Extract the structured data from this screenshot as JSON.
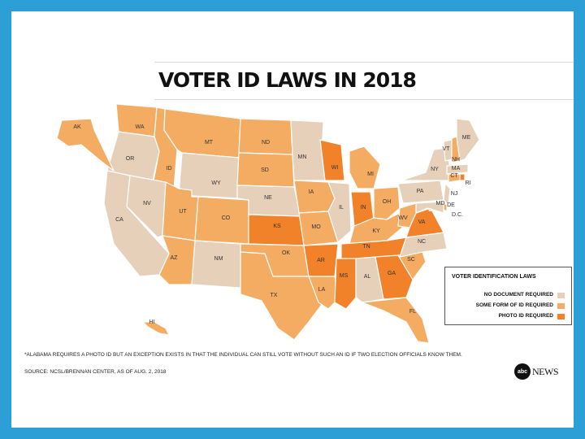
{
  "title": "VOTER ID LAWS IN 2018",
  "legend": {
    "title": "VOTER IDENTIFICATION LAWS",
    "items": [
      {
        "label": "NO DOCUMENT REQUIRED",
        "color": "#e6d0b9"
      },
      {
        "label": "SOME FORM OF ID REQUIRED",
        "color": "#f4ab62"
      },
      {
        "label": "PHOTO ID REQUIRED",
        "color": "#f1822a"
      }
    ]
  },
  "footnote": "*ALABAMA REQUIRES A PHOTO ID BUT AN EXCEPTION EXISTS IN THAT THE INDIVIDUAL CAN STILL VOTE WITHOUT SUCH AN ID IF TWO ELECTION OFFICIALS KNOW THEM.",
  "source": "SOURCE: NCSL/BRENNAN CENTER, AS OF AUG. 2, 2018",
  "brand": {
    "logo": "abc",
    "name": "NEWS"
  },
  "states": [
    {
      "abbr": "WA",
      "law": "some"
    },
    {
      "abbr": "OR",
      "law": "none"
    },
    {
      "abbr": "CA",
      "law": "none"
    },
    {
      "abbr": "ID",
      "law": "some"
    },
    {
      "abbr": "NV",
      "law": "none"
    },
    {
      "abbr": "MT",
      "law": "some"
    },
    {
      "abbr": "WY",
      "law": "none"
    },
    {
      "abbr": "UT",
      "law": "some"
    },
    {
      "abbr": "AZ",
      "law": "some"
    },
    {
      "abbr": "CO",
      "law": "some"
    },
    {
      "abbr": "NM",
      "law": "none"
    },
    {
      "abbr": "ND",
      "law": "some"
    },
    {
      "abbr": "SD",
      "law": "some"
    },
    {
      "abbr": "NE",
      "law": "none"
    },
    {
      "abbr": "KS",
      "law": "photo"
    },
    {
      "abbr": "OK",
      "law": "some"
    },
    {
      "abbr": "TX",
      "law": "some"
    },
    {
      "abbr": "MN",
      "law": "none"
    },
    {
      "abbr": "IA",
      "law": "some"
    },
    {
      "abbr": "MO",
      "law": "some"
    },
    {
      "abbr": "AR",
      "law": "photo"
    },
    {
      "abbr": "LA",
      "law": "some"
    },
    {
      "abbr": "WI",
      "law": "photo"
    },
    {
      "abbr": "IL",
      "law": "none"
    },
    {
      "abbr": "MI",
      "law": "some"
    },
    {
      "abbr": "IN",
      "law": "photo"
    },
    {
      "abbr": "OH",
      "law": "some"
    },
    {
      "abbr": "KY",
      "law": "some"
    },
    {
      "abbr": "TN",
      "law": "photo"
    },
    {
      "abbr": "MS",
      "law": "photo"
    },
    {
      "abbr": "AL",
      "law": "photo-exception"
    },
    {
      "abbr": "GA",
      "law": "photo"
    },
    {
      "abbr": "FL",
      "law": "some"
    },
    {
      "abbr": "SC",
      "law": "some"
    },
    {
      "abbr": "NC",
      "law": "none"
    },
    {
      "abbr": "VA",
      "law": "photo"
    },
    {
      "abbr": "WV",
      "law": "some"
    },
    {
      "abbr": "PA",
      "law": "none"
    },
    {
      "abbr": "NY",
      "law": "none"
    },
    {
      "abbr": "VT",
      "law": "none"
    },
    {
      "abbr": "NH",
      "law": "some"
    },
    {
      "abbr": "ME",
      "law": "none"
    },
    {
      "abbr": "MA",
      "law": "none"
    },
    {
      "abbr": "RI",
      "law": "photo"
    },
    {
      "abbr": "CT",
      "law": "some"
    },
    {
      "abbr": "NJ",
      "law": "none"
    },
    {
      "abbr": "DE",
      "law": "some"
    },
    {
      "abbr": "MD",
      "law": "none"
    },
    {
      "abbr": "D.C.",
      "law": "none"
    },
    {
      "abbr": "AK",
      "law": "some"
    },
    {
      "abbr": "HI",
      "law": "some"
    }
  ]
}
